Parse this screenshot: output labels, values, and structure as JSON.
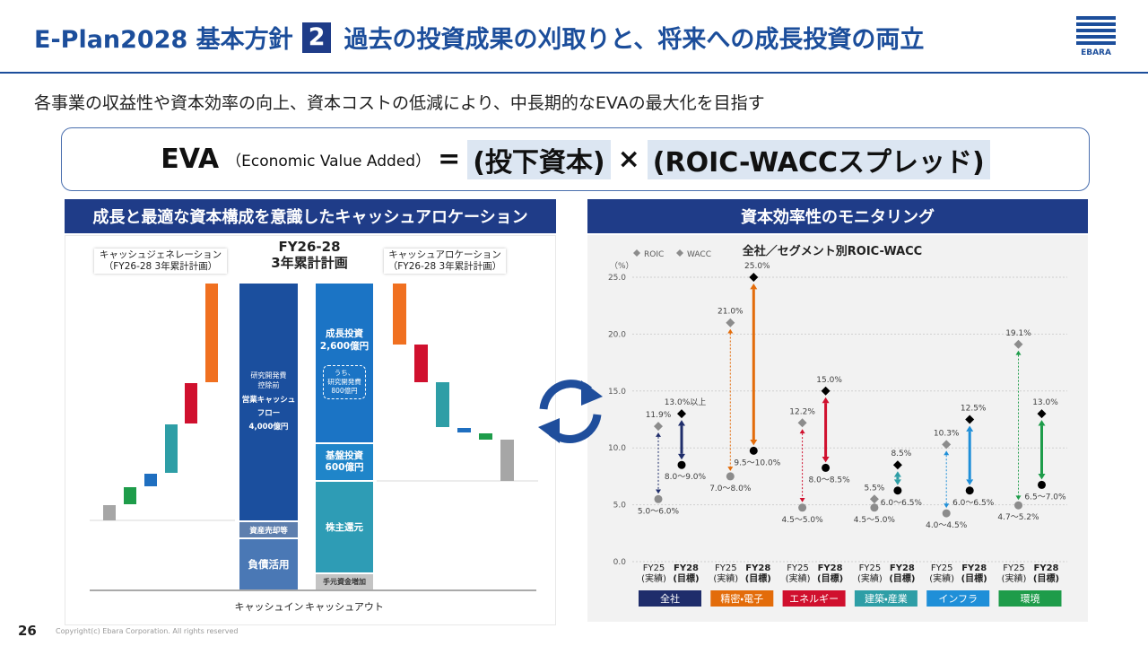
{
  "header": {
    "title_prefix": "E-Plan2028 基本方針",
    "badge": "2",
    "title": "過去の投資成果の刈取りと、将来への成長投資の両立",
    "logo": "EBARA"
  },
  "subtitle": "各事業の収益性や資本効率の向上、資本コストの低減により、中長期的なEVAの最大化を目指す",
  "formula": {
    "eva": "EVA",
    "eva_note": "（Economic Value Added）",
    "equals": "=",
    "term1": "(投下資本)",
    "times": "×",
    "term2": "(ROIC-WACCスプレッド)"
  },
  "left_panel": {
    "title": "成長と最適な資本構成を意識したキャッシュアロケーション",
    "generation_label": "キャッシュジェネレーション\n（FY26-28 3年累計計画）",
    "allocation_label": "キャッシュアロケーション\n（FY26-28 3年累計計画）",
    "plan_label": "FY26-28\n3年累計計画",
    "cash_in": {
      "main_note": "研究開発費\n控除前",
      "main": "営業キャッシュ\nフロー\n4,000億円",
      "asset_sales": "資産売却等",
      "debt": "負債活用",
      "label": "キャッシュイン"
    },
    "cash_out": {
      "growth": "成長投資\n2,600億円",
      "growth_note": "うち、\n研究開発費\n800億円",
      "base": "基盤投資\n600億円",
      "returns": "株主還元",
      "cash_increase": "手元資金増加",
      "label": "キャッシュアウト"
    }
  },
  "right_panel": {
    "title": "資本効率性のモニタリング"
  },
  "chart_data": {
    "type": "range_dot",
    "title": "全社／セグメント別ROIC-WACC",
    "y_unit": "（%）",
    "categories": [
      "FY25\n(実績)",
      "FY28\n(目標)",
      "FY25\n(実績)",
      "FY28\n(目標)",
      "FY25\n(実績)",
      "FY28\n(目標)",
      "FY25\n(実績)",
      "FY28\n(目標)",
      "FY25\n(実績)",
      "FY28\n(目標)",
      "FY25\n(実績)",
      "FY28\n(目標)"
    ],
    "groups": [
      {
        "name": "全社",
        "color": "#1f2d6b"
      },
      {
        "name": "精密・電子",
        "color": "#e36c0a"
      },
      {
        "name": "エネルギー",
        "color": "#d0102e"
      },
      {
        "name": "建築・産業",
        "color": "#2e9ea6"
      },
      {
        "name": "インフラ",
        "color": "#1f8fd8"
      },
      {
        "name": "環境",
        "color": "#1e9c4a"
      }
    ],
    "series": [
      {
        "name": "ROIC",
        "color": "#8c8c8c",
        "values": [
          11.9,
          13.0,
          21.0,
          25.0,
          12.2,
          15.0,
          5.5,
          8.5,
          10.3,
          12.5,
          19.1,
          13.0
        ],
        "value_labels": [
          "11.9%",
          "13.0%以上",
          "21.0%",
          "25.0%",
          "12.2%",
          "15.0%",
          "5.5%",
          "8.5%",
          "10.3%",
          "12.5%",
          "19.1%",
          "13.0%"
        ]
      },
      {
        "name": "WACC",
        "color": "#8c8c8c",
        "values": [
          5.5,
          8.5,
          7.5,
          9.75,
          4.75,
          8.25,
          4.75,
          6.25,
          4.25,
          6.25,
          4.95,
          6.75
        ],
        "value_labels": [
          "5.0～6.0%",
          "8.0～9.0%",
          "7.0～8.0%",
          "9.5～10.0%",
          "4.5～5.0%",
          "8.0～8.5%",
          "4.5～5.0%",
          "6.0～6.5%",
          "4.0～4.5%",
          "6.0～6.5%",
          "4.7～5.2%",
          "6.5～7.0%"
        ]
      }
    ],
    "actual_color": "#8c8c8c",
    "target_color": "#000000",
    "ylim": [
      0,
      25
    ],
    "yticks": [
      {
        "value": 0,
        "label": "0.0"
      },
      {
        "value": 5,
        "label": "5.0"
      },
      {
        "value": 10,
        "label": "10.0"
      },
      {
        "value": 15,
        "label": "15.0"
      },
      {
        "value": 20,
        "label": "20.0"
      },
      {
        "value": 25,
        "label": "25.0"
      }
    ],
    "grid": true
  },
  "footer": {
    "page": "26",
    "copyright": "Copyright(c) Ebara Corporation. All rights reserved"
  }
}
